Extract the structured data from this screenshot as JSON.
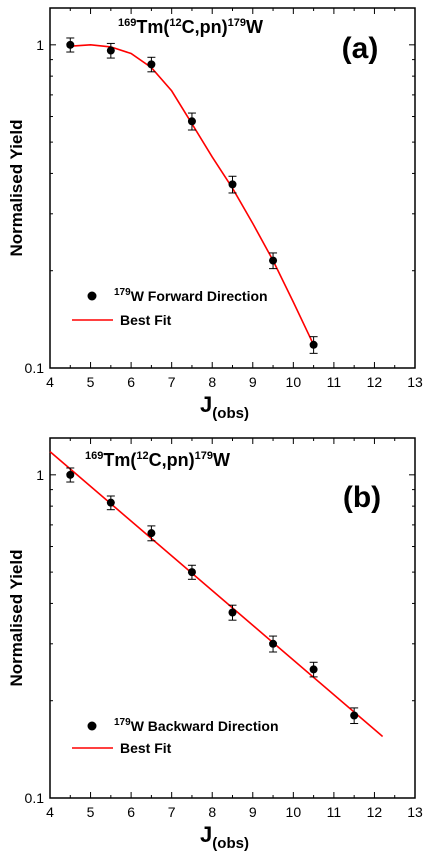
{
  "chart_data": [
    {
      "type": "scatter",
      "panel_label": "(a)",
      "title": {
        "pre": "169",
        "a": "Tm(",
        "sup2": "12",
        "b": "C,pn)",
        "sup3": "179",
        "c": "W"
      },
      "xlabel": {
        "main": "J",
        "sub": "(obs)"
      },
      "ylabel": "Normalised Yield",
      "xlim": [
        4,
        13
      ],
      "ylim": [
        0.1,
        1.3
      ],
      "yscale": "log",
      "xticks": [
        "4",
        "5",
        "6",
        "7",
        "8",
        "9",
        "10",
        "11",
        "12",
        "13"
      ],
      "yticks": [
        "0.1",
        "1"
      ],
      "legend_position": "lower-left",
      "series": [
        {
          "name_sup": "179",
          "name": "W Forward Direction",
          "kind": "points",
          "color": "#000000",
          "x": [
            4.5,
            5.5,
            6.5,
            7.5,
            8.5,
            9.5,
            10.5
          ],
          "y": [
            1.0,
            0.96,
            0.87,
            0.58,
            0.37,
            0.215,
            0.118
          ],
          "err": [
            0.05,
            0.05,
            0.045,
            0.035,
            0.022,
            0.012,
            0.007
          ]
        },
        {
          "name": "Best Fit",
          "kind": "line",
          "color": "#ff0000",
          "x": [
            4.5,
            5.0,
            5.5,
            6.0,
            6.5,
            7.0,
            7.5,
            8.0,
            8.5,
            9.0,
            9.5,
            10.0,
            10.5
          ],
          "y": [
            0.99,
            1.0,
            0.985,
            0.94,
            0.85,
            0.72,
            0.57,
            0.45,
            0.36,
            0.28,
            0.215,
            0.16,
            0.118
          ]
        }
      ]
    },
    {
      "type": "scatter",
      "panel_label": "(b)",
      "title": {
        "pre": "169",
        "a": "Tm(",
        "sup2": "12",
        "b": "C,pn)",
        "sup3": "179",
        "c": "W"
      },
      "xlabel": {
        "main": "J",
        "sub": "(obs)"
      },
      "ylabel": "Normalised Yield",
      "xlim": [
        4,
        13
      ],
      "ylim": [
        0.1,
        1.3
      ],
      "yscale": "log",
      "xticks": [
        "4",
        "5",
        "6",
        "7",
        "8",
        "9",
        "10",
        "11",
        "12",
        "13"
      ],
      "yticks": [
        "0.1",
        "1"
      ],
      "legend_position": "lower-left",
      "series": [
        {
          "name_sup": "179",
          "name": "W Backward Direction",
          "kind": "points",
          "color": "#000000",
          "x": [
            4.5,
            5.5,
            6.5,
            7.5,
            8.5,
            9.5,
            10.5,
            11.5
          ],
          "y": [
            1.0,
            0.82,
            0.66,
            0.5,
            0.375,
            0.3,
            0.25,
            0.18
          ],
          "err": [
            0.05,
            0.04,
            0.035,
            0.025,
            0.02,
            0.017,
            0.013,
            0.01
          ]
        },
        {
          "name": "Best Fit",
          "kind": "line",
          "color": "#ff0000",
          "x": [
            4.0,
            12.2
          ],
          "y": [
            1.18,
            0.155
          ]
        }
      ]
    }
  ]
}
